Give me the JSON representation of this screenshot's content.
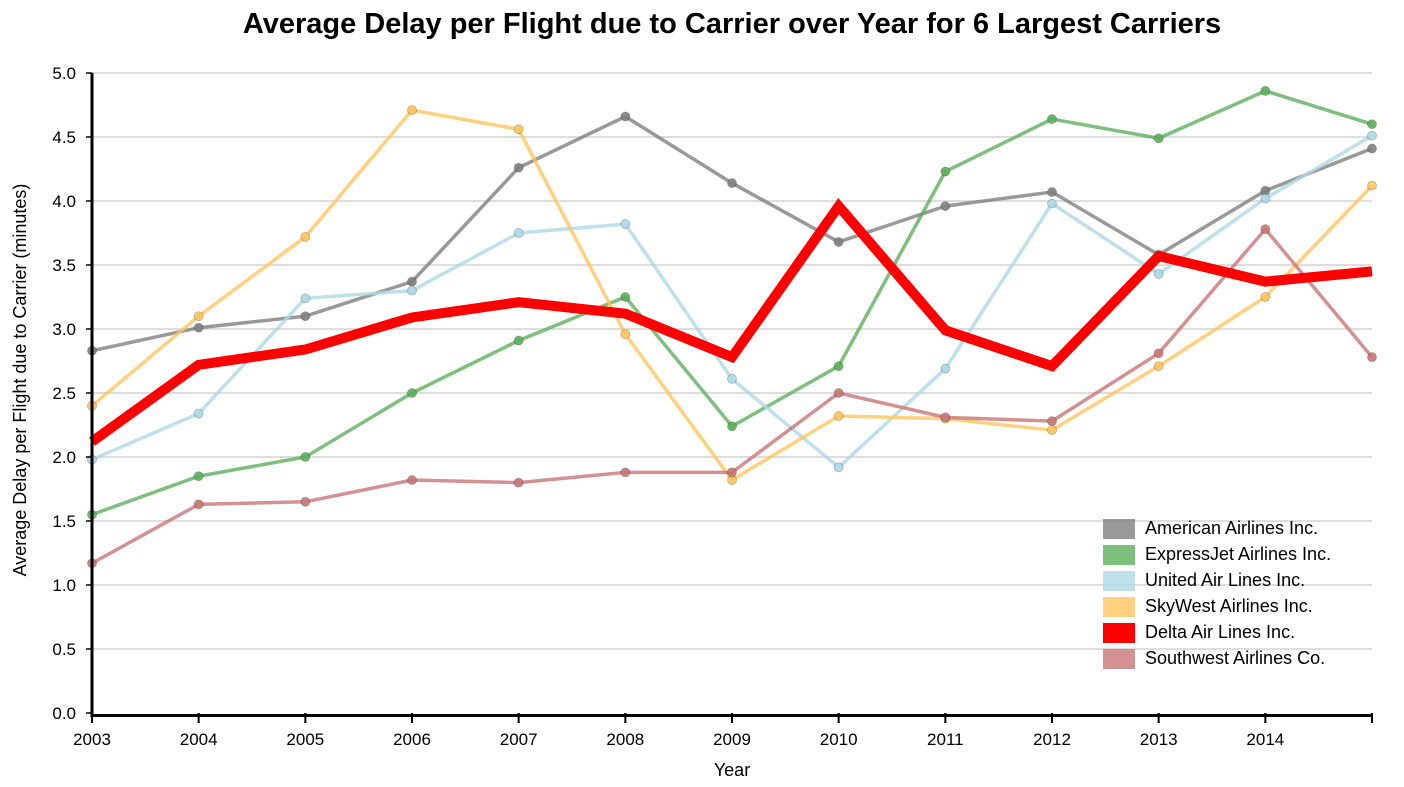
{
  "chart_data": {
    "type": "line",
    "title": "Average Delay per Flight due to Carrier over Year for 6 Largest Carriers",
    "xlabel": "Year",
    "ylabel": "Average Delay per Flight due to Carrier (minutes)",
    "x": [
      2003,
      2004,
      2005,
      2006,
      2007,
      2008,
      2009,
      2010,
      2011,
      2012,
      2013,
      2014,
      2015
    ],
    "xlim": [
      2003,
      2015
    ],
    "x_tick_labels": [
      "2003",
      "2004",
      "2005",
      "2006",
      "2007",
      "2008",
      "2009",
      "2010",
      "2011",
      "2012",
      "2013",
      "2014"
    ],
    "ylim": [
      0,
      5
    ],
    "y_ticks": [
      0,
      0.5,
      1,
      1.5,
      2,
      2.5,
      3,
      3.5,
      4,
      4.5,
      5
    ],
    "y_tick_labels": [
      "0.0",
      "0.5",
      "1.0",
      "1.5",
      "2.0",
      "2.5",
      "3.0",
      "3.5",
      "4.0",
      "4.5",
      "5.0"
    ],
    "grid": true,
    "legend_position": "bottom-right",
    "series": [
      {
        "name": "American Airlines Inc.",
        "color": "#808080",
        "emphasis": false,
        "values": [
          2.83,
          3.01,
          3.1,
          3.37,
          4.26,
          4.66,
          4.14,
          3.68,
          3.96,
          4.07,
          3.58,
          4.08,
          4.41
        ]
      },
      {
        "name": "ExpressJet Airlines Inc.",
        "color": "#5caf5c",
        "emphasis": false,
        "values": [
          1.55,
          1.85,
          2.0,
          2.5,
          2.91,
          3.25,
          2.24,
          2.71,
          4.23,
          4.64,
          4.49,
          4.86,
          4.6
        ]
      },
      {
        "name": "United Air Lines Inc.",
        "color": "#add8e6",
        "emphasis": false,
        "values": [
          1.98,
          2.34,
          3.24,
          3.3,
          3.75,
          3.82,
          2.61,
          1.92,
          2.69,
          3.98,
          3.43,
          4.02,
          4.51
        ]
      },
      {
        "name": "SkyWest Airlines Inc.",
        "color": "#ffc45c",
        "emphasis": false,
        "values": [
          2.4,
          3.1,
          3.72,
          4.71,
          4.56,
          2.96,
          1.82,
          2.32,
          2.3,
          2.21,
          2.71,
          3.25,
          4.12
        ]
      },
      {
        "name": "Delta Air Lines Inc.",
        "color": "#ff0000",
        "emphasis": true,
        "values": [
          2.12,
          2.72,
          2.84,
          3.09,
          3.21,
          3.12,
          2.78,
          3.96,
          2.99,
          2.71,
          3.57,
          3.37,
          3.45
        ]
      },
      {
        "name": "Southwest Airlines Co.",
        "color": "#c97676",
        "emphasis": false,
        "values": [
          1.17,
          1.63,
          1.65,
          1.82,
          1.8,
          1.88,
          1.88,
          2.5,
          2.31,
          2.28,
          2.81,
          3.78,
          2.78
        ]
      }
    ]
  }
}
